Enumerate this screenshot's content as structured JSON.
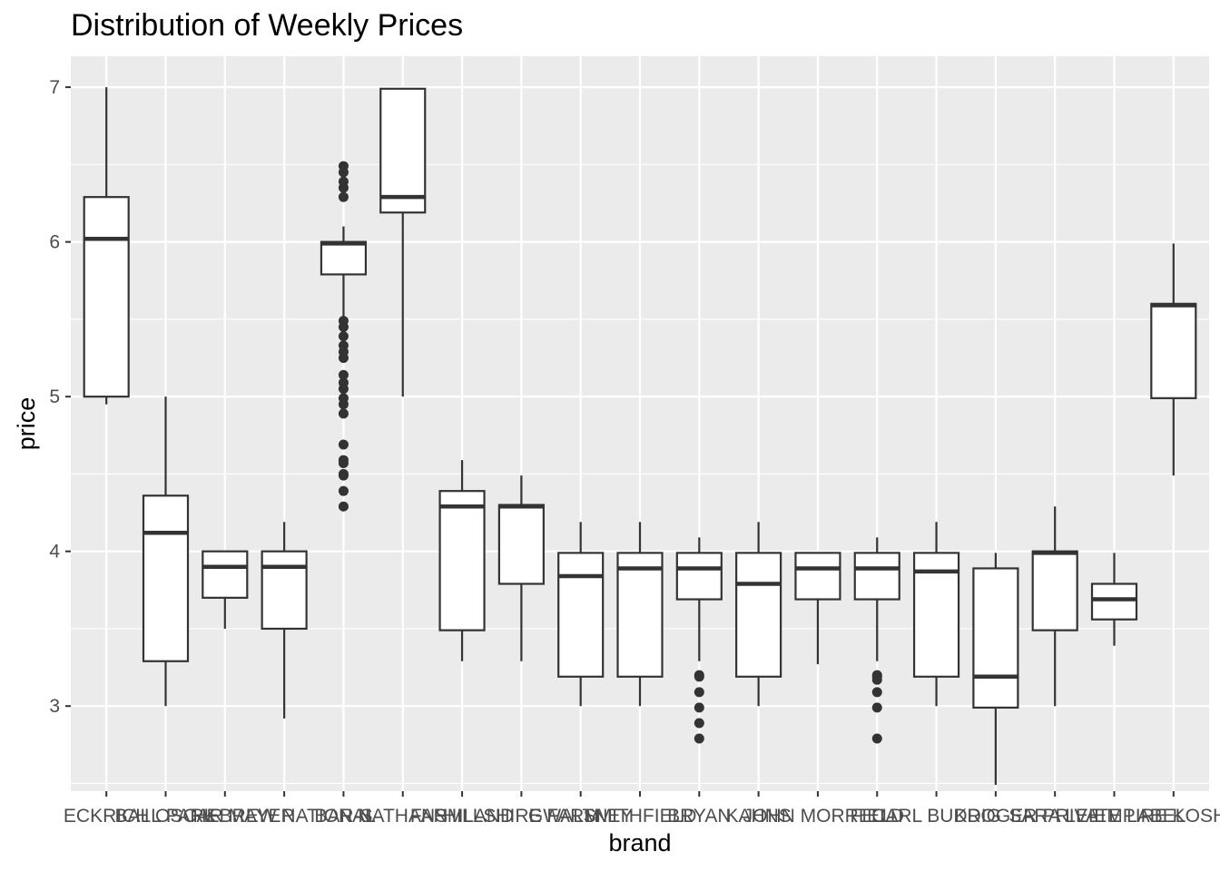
{
  "chart_data": {
    "type": "boxplot",
    "title": "Distribution of Weekly Prices",
    "xlabel": "brand",
    "ylabel": "price",
    "ylim": [
      2.45,
      7.2
    ],
    "yticks": [
      3,
      4,
      5,
      6,
      7
    ],
    "grid": true,
    "legend": "none",
    "colors": {
      "panel": "#ebebeb",
      "grid": "#ffffff",
      "box_fill": "#ffffff",
      "box_stroke": "#333333",
      "text": "#4d4d4d"
    },
    "categories": [
      "ECKRICH",
      "BALL PARK",
      "OSCAR MAYER",
      "HEBREW NATIONAL",
      "BAR-S",
      "NATHANS",
      "FARMLAND",
      "HILLSHIRE FARM",
      "GWALTNEY",
      "SMITHFIELD",
      "BRYAN",
      "KAHNS",
      "JOHN MORRELL",
      "FIELD",
      "CARL BUDDIG",
      "KROGER",
      "SARA LEE",
      "PRIVATE LABEL",
      "EMPIRE KOSHER"
    ],
    "boxes": [
      {
        "whisker_low": 4.95,
        "q1": 5.0,
        "median": 6.02,
        "q3": 6.29,
        "whisker_high": 7.0,
        "outliers": []
      },
      {
        "whisker_low": 3.0,
        "q1": 3.29,
        "median": 4.12,
        "q3": 4.36,
        "whisker_high": 5.0,
        "outliers": []
      },
      {
        "whisker_low": 3.5,
        "q1": 3.7,
        "median": 3.9,
        "q3": 4.0,
        "whisker_high": 4.0,
        "outliers": []
      },
      {
        "whisker_low": 2.92,
        "q1": 3.5,
        "median": 3.9,
        "q3": 4.0,
        "whisker_high": 4.19,
        "outliers": []
      },
      {
        "whisker_low": 5.49,
        "q1": 5.79,
        "median": 5.99,
        "q3": 6.0,
        "whisker_high": 6.1,
        "outliers": [
          4.29,
          4.39,
          4.49,
          4.5,
          4.57,
          4.59,
          4.69,
          4.89,
          4.95,
          4.99,
          5.05,
          5.09,
          5.14,
          5.25,
          5.29,
          5.33,
          5.39,
          5.45,
          5.49,
          6.29,
          6.35,
          6.39,
          6.45,
          6.49
        ]
      },
      {
        "whisker_low": 5.0,
        "q1": 6.19,
        "median": 6.29,
        "q3": 6.99,
        "whisker_high": 6.99,
        "outliers": []
      },
      {
        "whisker_low": 3.29,
        "q1": 3.49,
        "median": 4.29,
        "q3": 4.39,
        "whisker_high": 4.59,
        "outliers": []
      },
      {
        "whisker_low": 3.29,
        "q1": 3.79,
        "median": 4.29,
        "q3": 4.3,
        "whisker_high": 4.49,
        "outliers": []
      },
      {
        "whisker_low": 3.0,
        "q1": 3.19,
        "median": 3.84,
        "q3": 3.99,
        "whisker_high": 4.19,
        "outliers": []
      },
      {
        "whisker_low": 3.0,
        "q1": 3.19,
        "median": 3.89,
        "q3": 3.99,
        "whisker_high": 4.19,
        "outliers": []
      },
      {
        "whisker_low": 3.29,
        "q1": 3.69,
        "median": 3.89,
        "q3": 3.99,
        "whisker_high": 4.09,
        "outliers": [
          2.79,
          2.89,
          2.99,
          3.09,
          3.19,
          3.2
        ]
      },
      {
        "whisker_low": 3.0,
        "q1": 3.19,
        "median": 3.79,
        "q3": 3.99,
        "whisker_high": 4.19,
        "outliers": []
      },
      {
        "whisker_low": 3.27,
        "q1": 3.69,
        "median": 3.89,
        "q3": 3.99,
        "whisker_high": 3.99,
        "outliers": []
      },
      {
        "whisker_low": 3.29,
        "q1": 3.69,
        "median": 3.89,
        "q3": 3.99,
        "whisker_high": 4.09,
        "outliers": [
          2.79,
          2.99,
          3.09,
          3.17,
          3.19,
          3.2
        ]
      },
      {
        "whisker_low": 3.0,
        "q1": 3.19,
        "median": 3.87,
        "q3": 3.99,
        "whisker_high": 4.19,
        "outliers": []
      },
      {
        "whisker_low": 2.49,
        "q1": 2.99,
        "median": 3.19,
        "q3": 3.89,
        "whisker_high": 3.99,
        "outliers": []
      },
      {
        "whisker_low": 3.0,
        "q1": 3.49,
        "median": 3.99,
        "q3": 4.0,
        "whisker_high": 4.29,
        "outliers": []
      },
      {
        "whisker_low": 3.39,
        "q1": 3.56,
        "median": 3.69,
        "q3": 3.79,
        "whisker_high": 3.99,
        "outliers": []
      },
      {
        "whisker_low": 4.49,
        "q1": 4.99,
        "median": 5.59,
        "q3": 5.6,
        "whisker_high": 5.99,
        "outliers": []
      }
    ]
  }
}
